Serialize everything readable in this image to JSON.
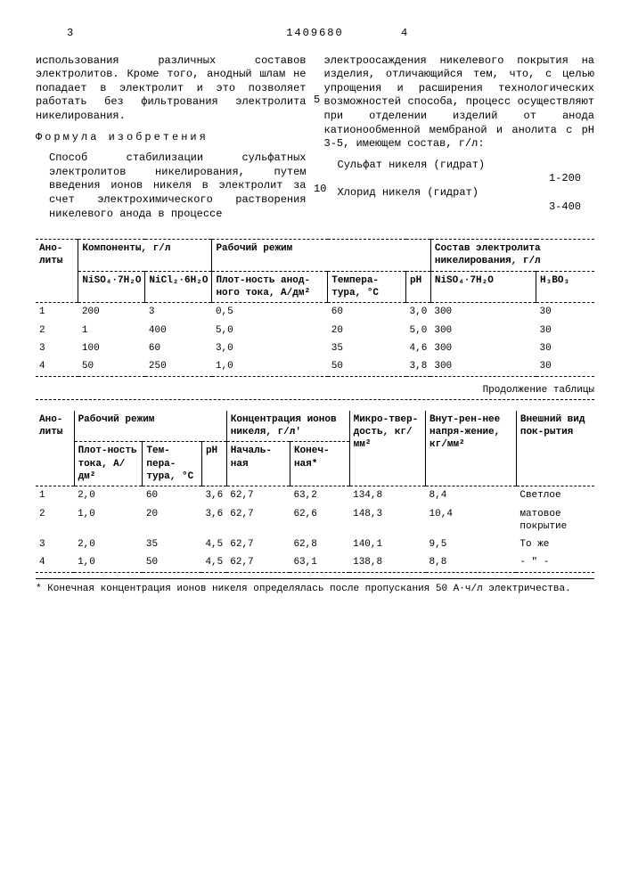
{
  "page": {
    "doc_number": "1409680",
    "left_num": "3",
    "right_num": "4",
    "side5": "5",
    "side10": "10"
  },
  "left_col": {
    "p1": "использования различных составов электролитов. Кроме того, анодный шлам не попадает в электролит и это позволяет работать без фильтрования электролита никелирования.",
    "formula_title": "Формула изобретения",
    "p2": "Способ стабилизации сульфатных электролитов никелирования, путем введения ионов никеля в электролит за счет электрохимического растворения никелевого анода в процессе"
  },
  "right_col": {
    "p1": "электроосаждения никелевого покрытия на изделия, отличающийся тем, что, с целью упрощения и расширения технологических возможностей способа, процесс осуществляют при отделении изделий от анода катионообменной мембраной и анолита с pH 3-5, имеющем состав, г/л:",
    "comp1_label": "Сульфат никеля (гидрат)",
    "comp1_val": "1-200",
    "comp2_label": "Хлорид никеля (гидрат)",
    "comp2_val": "3-400"
  },
  "table1": {
    "h_anolity": "Ано-литы",
    "h_comp": "Компоненты, г/л",
    "h_rezh": "Рабочий режим",
    "h_sostav": "Состав электролита никелирования, г/л",
    "h_niso4": "NiSO₄·7H₂O",
    "h_nicl2": "NiCl₂·6H₂O",
    "h_plot": "Плот-ность анод-ного тока, А/дм²",
    "h_temp": "Темпера-тура, °C",
    "h_ph": "pH",
    "h_niso4_2": "NiSO₄·7H₂O",
    "h_h3bo3": "H₃BO₃",
    "rows": [
      {
        "n": "1",
        "c1": "200",
        "c2": "3",
        "c3": "0,5",
        "c4": "60",
        "c5": "3,0",
        "c6": "300",
        "c7": "30"
      },
      {
        "n": "2",
        "c1": "1",
        "c2": "400",
        "c3": "5,0",
        "c4": "20",
        "c5": "5,0",
        "c6": "300",
        "c7": "30"
      },
      {
        "n": "3",
        "c1": "100",
        "c2": "60",
        "c3": "3,0",
        "c4": "35",
        "c5": "4,6",
        "c6": "300",
        "c7": "30"
      },
      {
        "n": "4",
        "c1": "50",
        "c2": "250",
        "c3": "1,0",
        "c4": "50",
        "c5": "3,8",
        "c6": "300",
        "c7": "30"
      }
    ]
  },
  "cont_label": "Продолжение таблицы",
  "table2": {
    "h_anolity": "Ано-литы",
    "h_rezh": "Рабочий режим",
    "h_konc": "Концентрация ионов никеля, г/л'",
    "h_mikro": "Микро-твер-дость, кг/мм²",
    "h_vnut": "Внут-рен-нее напря-жение, кг/мм²",
    "h_vid": "Внешний вид пок-рытия",
    "h_plot": "Плот-ность тока, А/дм²",
    "h_temp": "Тем-пера-тура, °C",
    "h_ph": "pH",
    "h_nach": "Началь-ная",
    "h_kon": "Конеч-ная*",
    "rows": [
      {
        "n": "1",
        "c1": "2,0",
        "c2": "60",
        "c3": "3,6",
        "c4": "62,7",
        "c5": "63,2",
        "c6": "134,8",
        "c7": "8,4",
        "c8": "Светлое"
      },
      {
        "n": "2",
        "c1": "1,0",
        "c2": "20",
        "c3": "3,6",
        "c4": "62,7",
        "c5": "62,6",
        "c6": "148,3",
        "c7": "10,4",
        "c8": "матовое покрытие"
      },
      {
        "n": "3",
        "c1": "2,0",
        "c2": "35",
        "c3": "4,5",
        "c4": "62,7",
        "c5": "62,8",
        "c6": "140,1",
        "c7": "9,5",
        "c8": "То же"
      },
      {
        "n": "4",
        "c1": "1,0",
        "c2": "50",
        "c3": "4,5",
        "c4": "62,7",
        "c5": "63,1",
        "c6": "138,8",
        "c7": "8,8",
        "c8": "- \" -"
      }
    ]
  },
  "footnote": "* Конечная концентрация ионов никеля определялась после пропускания 50 А·ч/л электричества."
}
